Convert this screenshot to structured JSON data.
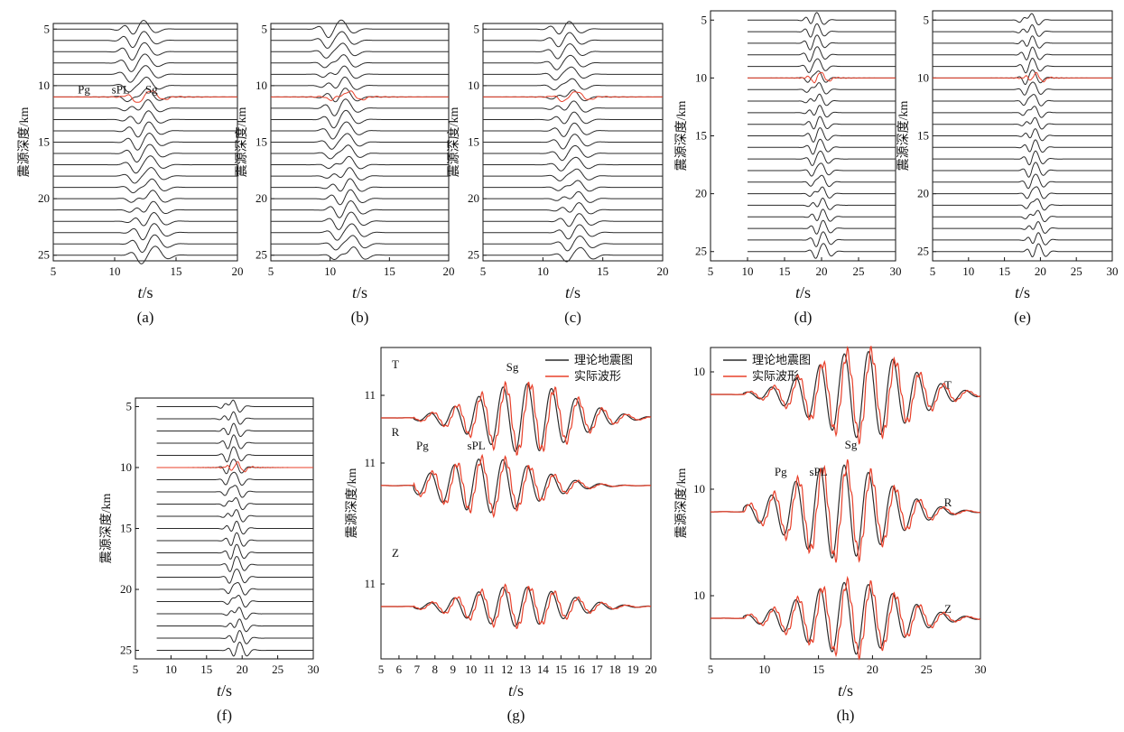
{
  "figure": {
    "description_label": "Depth-scan synthetic seismograms and waveform fits",
    "colors": {
      "synthetic": "#2b2b2b",
      "observed": "#e8402a",
      "axis": "#111111",
      "background": "#ffffff"
    }
  },
  "chart_data": [
    {
      "id": "a",
      "label": "(a)",
      "type": "line",
      "xlabel_italic": "t",
      "xlabel_unit": "/s",
      "ylabel": "震源深度/km",
      "xlim": [
        5,
        20
      ],
      "xticks": [
        5,
        10,
        15,
        20
      ],
      "ylim": [
        4.5,
        25.5
      ],
      "yticks": [
        5,
        10,
        15,
        20,
        25
      ],
      "depths": [
        5,
        6,
        7,
        8,
        9,
        10,
        11,
        12,
        13,
        14,
        15,
        16,
        17,
        18,
        19,
        20,
        21,
        22,
        23,
        24,
        25
      ],
      "best_depth": 11,
      "phase_labels": [
        {
          "text": "Pg",
          "t": 7.5
        },
        {
          "text": "sPL",
          "t": 10.5
        },
        {
          "text": "Sg",
          "t": 13
        }
      ],
      "wave_center": 12.8,
      "amp": 0.35
    },
    {
      "id": "b",
      "label": "(b)",
      "type": "line",
      "xlabel_italic": "t",
      "xlabel_unit": "/s",
      "ylabel": "震源深度/km",
      "xlim": [
        5,
        20
      ],
      "xticks": [
        5,
        10,
        15,
        20
      ],
      "ylim": [
        4.5,
        25.5
      ],
      "yticks": [
        5,
        10,
        15,
        20,
        25
      ],
      "depths": [
        5,
        6,
        7,
        8,
        9,
        10,
        11,
        12,
        13,
        14,
        15,
        16,
        17,
        18,
        19,
        20,
        21,
        22,
        23,
        24,
        25
      ],
      "best_depth": 11,
      "phase_labels": [],
      "wave_center": 11.5,
      "amp": 0.35
    },
    {
      "id": "c",
      "label": "(c)",
      "type": "line",
      "xlabel_italic": "t",
      "xlabel_unit": "/s",
      "ylabel": "震源深度/km",
      "xlim": [
        5,
        20
      ],
      "xticks": [
        5,
        10,
        15,
        20
      ],
      "ylim": [
        4.5,
        25.5
      ],
      "yticks": [
        5,
        10,
        15,
        20,
        25
      ],
      "depths": [
        5,
        6,
        7,
        8,
        9,
        10,
        11,
        12,
        13,
        14,
        15,
        16,
        17,
        18,
        19,
        20,
        21,
        22,
        23,
        24,
        25
      ],
      "best_depth": 11,
      "phase_labels": [],
      "wave_center": 12.8,
      "amp": 0.3
    },
    {
      "id": "d",
      "label": "(d)",
      "type": "line",
      "xlabel_italic": "t",
      "xlabel_unit": "/s",
      "ylabel": "震源深度/km",
      "xlim": [
        5,
        30
      ],
      "xticks": [
        5,
        10,
        15,
        20,
        25,
        30
      ],
      "ylim": [
        4.2,
        25.8
      ],
      "yticks": [
        5,
        10,
        15,
        20,
        25
      ],
      "depths": [
        5,
        6,
        7,
        8,
        9,
        10,
        11,
        12,
        13,
        14,
        15,
        16,
        17,
        18,
        19,
        20,
        21,
        22,
        23,
        24,
        25
      ],
      "best_depth": 10,
      "phase_labels": [],
      "wave_center": 20,
      "amp": 0.3,
      "line_start": 10
    },
    {
      "id": "e",
      "label": "(e)",
      "type": "line",
      "xlabel_italic": "t",
      "xlabel_unit": "/s",
      "ylabel": "震源深度/km",
      "xlim": [
        5,
        30
      ],
      "xticks": [
        5,
        10,
        15,
        20,
        25,
        30
      ],
      "ylim": [
        4.2,
        25.8
      ],
      "yticks": [
        5,
        10,
        15,
        20,
        25
      ],
      "depths": [
        5,
        6,
        7,
        8,
        9,
        10,
        11,
        12,
        13,
        14,
        15,
        16,
        17,
        18,
        19,
        20,
        21,
        22,
        23,
        24,
        25
      ],
      "best_depth": 10,
      "phase_labels": [],
      "wave_center": 19.5,
      "amp": 0.3
    },
    {
      "id": "f",
      "label": "(f)",
      "type": "line",
      "xlabel_italic": "t",
      "xlabel_unit": "/s",
      "ylabel": "震源深度/km",
      "xlim": [
        5,
        30
      ],
      "xticks": [
        5,
        10,
        15,
        20,
        25,
        30
      ],
      "ylim": [
        4.3,
        25.7
      ],
      "yticks": [
        5,
        10,
        15,
        20,
        25
      ],
      "depths": [
        5,
        6,
        7,
        8,
        9,
        10,
        11,
        12,
        13,
        14,
        15,
        16,
        17,
        18,
        19,
        20,
        21,
        22,
        23,
        24,
        25
      ],
      "best_depth": 10,
      "phase_labels": [],
      "wave_center": 19.5,
      "amp": 0.3,
      "line_start": 8
    },
    {
      "id": "g",
      "label": "(g)",
      "type": "line",
      "xlabel_italic": "t",
      "xlabel_unit": "/s",
      "ylabel": "震源深度/km",
      "xlim": [
        5,
        20
      ],
      "xticks": [
        5,
        6,
        7,
        8,
        9,
        10,
        11,
        12,
        13,
        14,
        15,
        16,
        17,
        18,
        19,
        20
      ],
      "tick_labels": [
        "5",
        "6",
        "7",
        "8",
        "9",
        "10",
        "11",
        "12",
        "13",
        "14",
        "15",
        "16",
        "17",
        "18",
        "19",
        "20"
      ],
      "components": [
        {
          "name": "T",
          "depth_label": "11",
          "phase_labels": [
            {
              "text": "Sg",
              "t": 12.3
            }
          ]
        },
        {
          "name": "R",
          "depth_label": "11",
          "phase_labels": [
            {
              "text": "Pg",
              "t": 7.3
            },
            {
              "text": "sPL",
              "t": 10.3
            }
          ]
        },
        {
          "name": "Z",
          "depth_label": "11",
          "phase_labels": []
        }
      ],
      "legend": [
        "理论地震图",
        "实际波形"
      ]
    },
    {
      "id": "h",
      "label": "(h)",
      "type": "line",
      "xlabel_italic": "t",
      "xlabel_unit": "/s",
      "ylabel": "震源深度/km",
      "xlim": [
        5,
        30
      ],
      "xticks": [
        5,
        10,
        15,
        20,
        25,
        30
      ],
      "tick_labels": [
        "5",
        "10",
        "15",
        "20",
        "25",
        "30"
      ],
      "components": [
        {
          "name": "T",
          "depth_label": "10",
          "phase_labels": [
            {
              "text": "Sg",
              "t": 18
            }
          ]
        },
        {
          "name": "R",
          "depth_label": "10",
          "phase_labels": [
            {
              "text": "Pg",
              "t": 11.5
            },
            {
              "text": "sPL",
              "t": 15
            }
          ]
        },
        {
          "name": "Z",
          "depth_label": "10",
          "phase_labels": []
        }
      ],
      "legend": [
        "理论地震图",
        "实际波形"
      ]
    }
  ]
}
